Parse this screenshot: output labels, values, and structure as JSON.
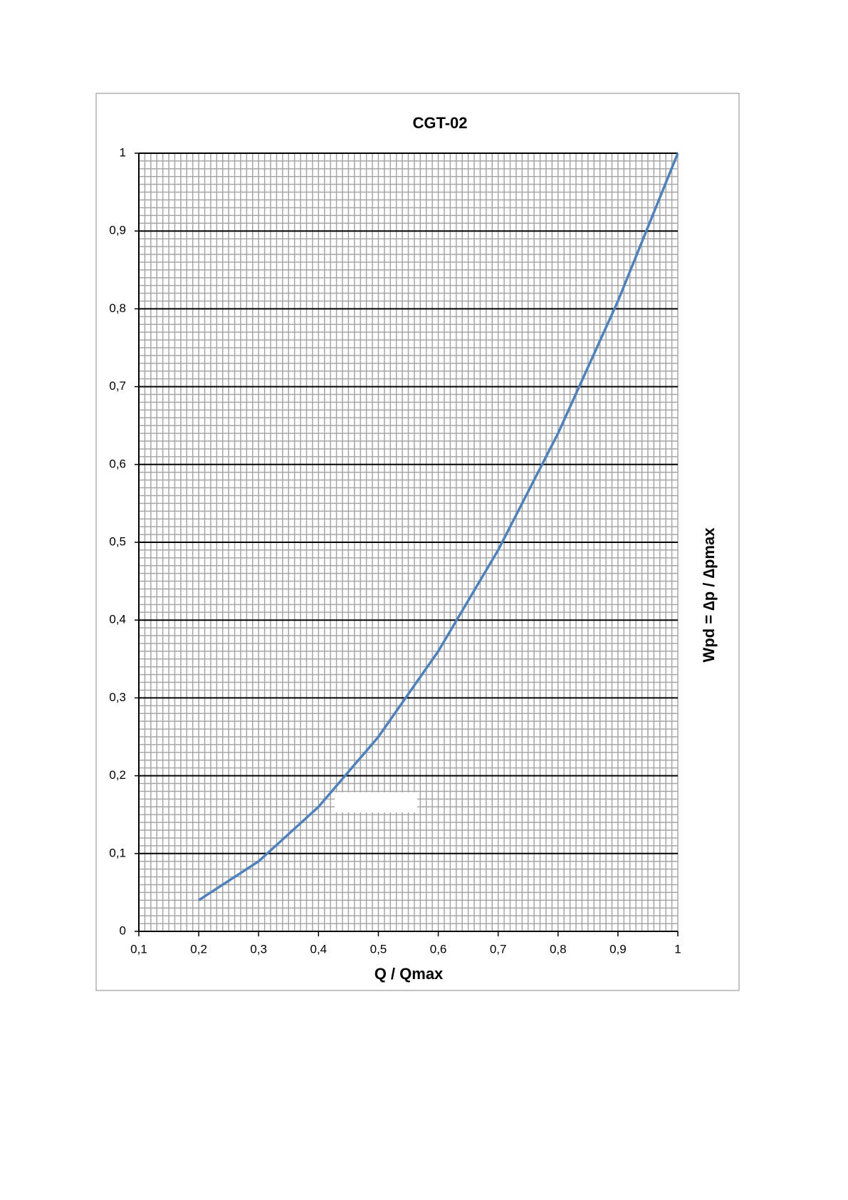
{
  "chart_data": {
    "type": "line",
    "title": "CGT-02",
    "x_label": "Q / Qmax",
    "y_label": "Wpd = ∆p / ∆pmax",
    "x": [
      0.2,
      0.3,
      0.4,
      0.5,
      0.6,
      0.7,
      0.8,
      0.9,
      1
    ],
    "series": [
      {
        "color": "#4f81bd",
        "values": [
          0.04,
          0.09,
          0.16,
          0.25,
          0.36,
          0.49,
          0.64,
          0.81,
          1
        ]
      }
    ],
    "xlim": [
      0.1,
      1
    ],
    "ylim": [
      0,
      1
    ],
    "xticks": [
      {
        "value": 0.1,
        "label": "0,1"
      },
      {
        "value": 0.2,
        "label": "0,2"
      },
      {
        "value": 0.3,
        "label": "0,3"
      },
      {
        "value": 0.4,
        "label": "0,4"
      },
      {
        "value": 0.5,
        "label": "0,5"
      },
      {
        "value": 0.6,
        "label": "0,6"
      },
      {
        "value": 0.7,
        "label": "0,7"
      },
      {
        "value": 0.8,
        "label": "0,8"
      },
      {
        "value": 0.9,
        "label": "0,9"
      },
      1
    ],
    "yticks": [
      0,
      {
        "value": 0.1,
        "label": "0,1"
      },
      {
        "value": 0.2,
        "label": "0,2"
      },
      {
        "value": 0.3,
        "label": "0,3"
      },
      {
        "value": 0.4,
        "label": "0,4"
      },
      {
        "value": 0.5,
        "label": "0,5"
      },
      {
        "value": 0.6,
        "label": "0,6"
      },
      {
        "value": 0.7,
        "label": "0,7"
      },
      {
        "value": 0.8,
        "label": "0,8"
      },
      {
        "value": 0.9,
        "label": "0,9"
      },
      1
    ],
    "grid": true,
    "minor_grid": true
  }
}
